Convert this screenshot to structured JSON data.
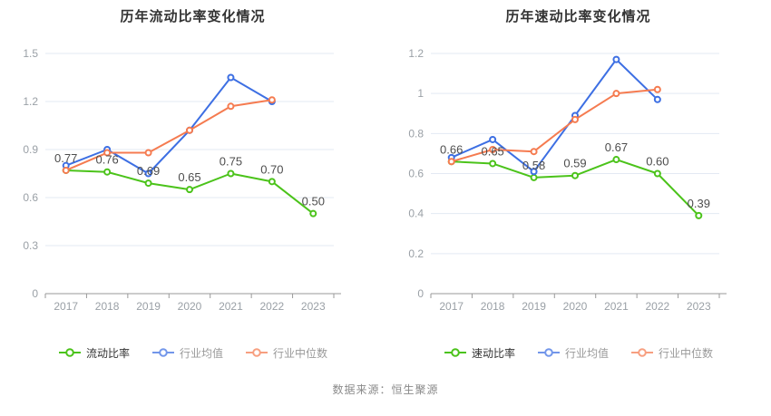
{
  "page": {
    "background": "#ffffff",
    "colors": {
      "grid": "#e3e9f3",
      "axis": "#999999",
      "tick_label": "#9aa0a6",
      "data_label": "#4d4d4d",
      "title": "#333333"
    }
  },
  "footer": {
    "text": "数据来源：恒生聚源"
  },
  "chart_data": [
    {
      "type": "line",
      "title": "历年流动比率变化情况",
      "categories": [
        "2017",
        "2018",
        "2019",
        "2020",
        "2021",
        "2022",
        "2023"
      ],
      "ylim": [
        0,
        1.5
      ],
      "yticks": [
        "0",
        "0.3",
        "0.6",
        "0.9",
        "1.2",
        "1.5"
      ],
      "grid": true,
      "legend_position": "bottom",
      "series": [
        {
          "name": "流动比率",
          "color": "#4bc31a",
          "values": [
            0.77,
            0.76,
            0.69,
            0.65,
            0.75,
            0.7,
            0.5
          ],
          "labels": [
            "0.77",
            "0.76",
            "0.69",
            "0.65",
            "0.75",
            "0.70",
            "0.50"
          ]
        },
        {
          "name": "行业均值",
          "color": "#3d6fe3",
          "values": [
            0.8,
            0.9,
            0.75,
            1.02,
            1.35,
            1.2,
            null
          ]
        },
        {
          "name": "行业中位数",
          "color": "#f57b50",
          "values": [
            0.77,
            0.88,
            0.88,
            1.02,
            1.17,
            1.21,
            null
          ]
        }
      ]
    },
    {
      "type": "line",
      "title": "历年速动比率变化情况",
      "categories": [
        "2017",
        "2018",
        "2019",
        "2020",
        "2021",
        "2022",
        "2023"
      ],
      "ylim": [
        0,
        1.2
      ],
      "yticks": [
        "0",
        "0.2",
        "0.4",
        "0.6",
        "0.8",
        "1",
        "1.2"
      ],
      "grid": true,
      "legend_position": "bottom",
      "series": [
        {
          "name": "速动比率",
          "color": "#4bc31a",
          "values": [
            0.66,
            0.65,
            0.58,
            0.59,
            0.67,
            0.6,
            0.39
          ],
          "labels": [
            "0.66",
            "0.65",
            "0.58",
            "0.59",
            "0.67",
            "0.60",
            "0.39"
          ]
        },
        {
          "name": "行业均值",
          "color": "#3d6fe3",
          "values": [
            0.68,
            0.77,
            0.61,
            0.89,
            1.17,
            0.97,
            null
          ]
        },
        {
          "name": "行业中位数",
          "color": "#f57b50",
          "values": [
            0.66,
            0.72,
            0.71,
            0.87,
            1.0,
            1.02,
            null
          ]
        }
      ]
    }
  ]
}
